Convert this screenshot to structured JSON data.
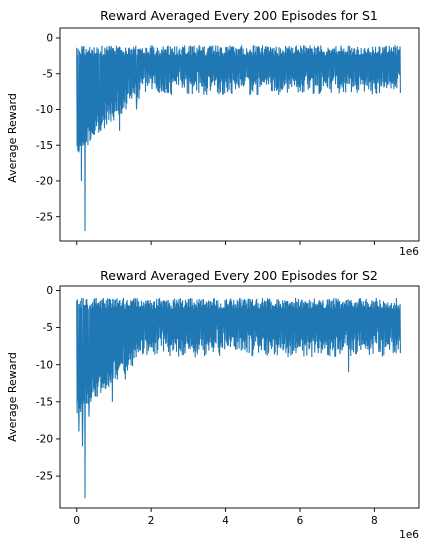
{
  "chart_data": [
    {
      "type": "line",
      "title": "Reward Averaged Every 200 Episodes for S1",
      "xlabel": "",
      "ylabel": "Average Reward",
      "x_offset_label": "1e6",
      "show_x_tick_labels": false,
      "xlim": [
        -0.45,
        9.2
      ],
      "ylim": [
        -28.4,
        1.4
      ],
      "x_ticks": [
        0,
        2,
        4,
        6,
        8
      ],
      "y_ticks": [
        0,
        -5,
        -10,
        -15,
        -20,
        -25
      ],
      "color": "#1f77b4",
      "series": [
        {
          "x_range": [
            0,
            8.7
          ],
          "band": {
            "upper": -1,
            "lower_late": -8,
            "lower_early": -16
          },
          "spikes": [
            {
              "x": 0.05,
              "y": -16
            },
            {
              "x": 0.12,
              "y": -20
            },
            {
              "x": 0.22,
              "y": -27
            },
            {
              "x": 0.3,
              "y": -15
            },
            {
              "x": 0.6,
              "y": -12
            },
            {
              "x": 1.15,
              "y": -13
            },
            {
              "x": 1.6,
              "y": -10
            }
          ]
        }
      ]
    },
    {
      "type": "line",
      "title": "Reward Averaged Every 200 Episodes for S2",
      "xlabel": "",
      "ylabel": "Average Reward",
      "x_offset_label": "1e6",
      "show_x_tick_labels": true,
      "xlim": [
        -0.45,
        9.2
      ],
      "ylim": [
        -29.3,
        0.6
      ],
      "x_ticks": [
        0,
        2,
        4,
        6,
        8
      ],
      "y_ticks": [
        0,
        -5,
        -10,
        -15,
        -20,
        -25
      ],
      "color": "#1f77b4",
      "series": [
        {
          "x_range": [
            0,
            8.7
          ],
          "band": {
            "upper": -1,
            "lower_late": -9,
            "lower_early": -17
          },
          "spikes": [
            {
              "x": 0.05,
              "y": -19
            },
            {
              "x": 0.15,
              "y": -21
            },
            {
              "x": 0.22,
              "y": -28
            },
            {
              "x": 0.32,
              "y": -17
            },
            {
              "x": 0.95,
              "y": -15
            },
            {
              "x": 1.3,
              "y": -12
            },
            {
              "x": 7.3,
              "y": -11
            }
          ]
        }
      ]
    }
  ]
}
